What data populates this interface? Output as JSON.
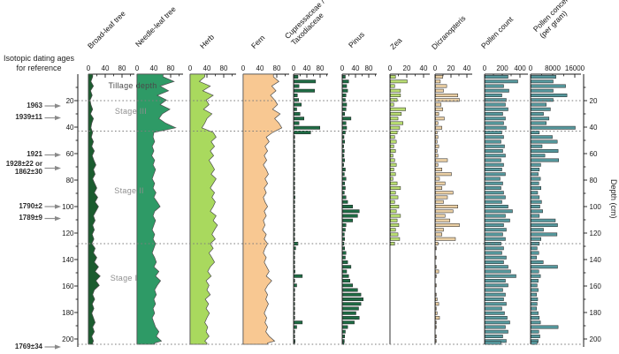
{
  "left_panel": {
    "title_line1": "Isotopic dating ages",
    "title_line2": "for reference",
    "dating_labels": [
      {
        "lines": [
          "1963"
        ],
        "depth": 24
      },
      {
        "lines": [
          "1939±11"
        ],
        "depth": 33
      },
      {
        "lines": [
          "1921"
        ],
        "depth": 61
      },
      {
        "lines": [
          "1928±22 or",
          "1862±30"
        ],
        "depth": 71
      },
      {
        "lines": [
          "1790±2"
        ],
        "depth": 100
      },
      {
        "lines": [
          "1789±9"
        ],
        "depth": 109
      },
      {
        "lines": [
          "1769±34"
        ],
        "depth": 206
      }
    ]
  },
  "stages": [
    {
      "label": "Tillage depth",
      "from_depth": 0,
      "to_depth": 20
    },
    {
      "label": "Stage III",
      "from_depth": 20,
      "to_depth": 43
    },
    {
      "label": "Stage II",
      "from_depth": 43,
      "to_depth": 128
    },
    {
      "label": "Stage I",
      "from_depth": 128,
      "to_depth": 204
    }
  ],
  "depth_axis": {
    "label": "Depth (cm)",
    "ticks": [
      20,
      40,
      60,
      80,
      100,
      120,
      140,
      160,
      180,
      200
    ],
    "top_depth": 0,
    "bottom_depth": 204
  },
  "chart_data": {
    "type": "area",
    "note": "stratigraphic pollen diagram; percent abundance vs depth",
    "boundaries_depth": [
      20,
      43,
      128,
      204
    ],
    "depths": [
      2,
      5.5,
      9,
      12.5,
      16,
      19.5,
      23,
      26.5,
      30,
      33.5,
      37,
      40.5,
      44,
      47.5,
      51,
      54.5,
      58,
      61.5,
      65,
      68.5,
      72,
      75.5,
      79,
      82.5,
      86,
      89.5,
      93,
      96.5,
      100,
      103.5,
      107,
      110.5,
      114,
      117.5,
      121,
      124.5,
      128,
      131.5,
      135,
      138.5,
      142,
      145.5,
      149,
      152.5,
      156,
      159.5,
      163,
      166.5,
      170,
      173.5,
      177,
      180.5,
      184,
      187.5,
      191,
      194.5,
      198,
      201.5,
      203
    ],
    "columns": [
      {
        "title": "Broad-leaf tree",
        "style": "area",
        "color": "#1b5c2f",
        "ticks": [
          0,
          40,
          80
        ],
        "values": [
          10,
          6,
          12,
          5,
          9,
          4,
          6,
          10,
          5,
          12,
          8,
          6,
          10,
          7,
          12,
          8,
          14,
          9,
          13,
          18,
          12,
          16,
          10,
          15,
          20,
          14,
          22,
          16,
          24,
          18,
          12,
          16,
          10,
          14,
          9,
          13,
          8,
          16,
          12,
          20,
          14,
          24,
          16,
          28,
          18,
          26,
          14,
          10,
          15,
          9,
          13,
          8,
          12,
          16,
          10,
          14,
          8,
          12,
          10
        ]
      },
      {
        "title": "Needle-leaf tree",
        "style": "area",
        "color": "#2e9a66",
        "ticks": [
          0,
          40,
          80
        ],
        "values": [
          62,
          88,
          55,
          75,
          48,
          70,
          55,
          78,
          60,
          52,
          68,
          92,
          40,
          38,
          42,
          36,
          40,
          35,
          42,
          38,
          44,
          40,
          36,
          42,
          38,
          45,
          40,
          48,
          55,
          42,
          38,
          44,
          40,
          36,
          42,
          38,
          44,
          40,
          36,
          42,
          46,
          40,
          52,
          44,
          56,
          48,
          42,
          46,
          40,
          44,
          38,
          42,
          36,
          40,
          44,
          52,
          46,
          58,
          42
        ]
      },
      {
        "title": "Herb",
        "style": "area",
        "color": "#a9d95e",
        "ticks": [
          0,
          40,
          80
        ],
        "values": [
          35,
          22,
          48,
          30,
          55,
          38,
          45,
          32,
          52,
          40,
          35,
          28,
          55,
          62,
          50,
          58,
          48,
          56,
          45,
          52,
          58,
          50,
          62,
          55,
          48,
          58,
          52,
          60,
          55,
          48,
          62,
          55,
          65,
          58,
          52,
          60,
          48,
          55,
          45,
          52,
          58,
          48,
          42,
          50,
          38,
          45,
          40,
          48,
          36,
          44,
          38,
          46,
          40,
          35,
          42,
          38,
          45,
          35,
          40
        ]
      },
      {
        "title": "Fern",
        "style": "area",
        "color": "#f8c892",
        "ticks": [
          0,
          40,
          80
        ],
        "values": [
          72,
          85,
          68,
          78,
          65,
          75,
          82,
          70,
          88,
          75,
          85,
          92,
          70,
          55,
          62,
          52,
          58,
          50,
          56,
          48,
          55,
          60,
          52,
          58,
          50,
          55,
          48,
          52,
          58,
          50,
          55,
          48,
          52,
          46,
          55,
          50,
          58,
          52,
          48,
          55,
          50,
          56,
          62,
          55,
          68,
          58,
          52,
          58,
          54,
          60,
          55,
          50,
          56,
          52,
          58,
          54,
          62,
          75,
          58
        ]
      },
      {
        "title": "Cupressaceae /",
        "subtitle": "Taxodiaceae",
        "style": "bar",
        "color": "#1e6b44",
        "ticks": [
          0,
          40,
          80
        ],
        "values": [
          12,
          65,
          15,
          62,
          10,
          14,
          22,
          8,
          18,
          30,
          15,
          78,
          50,
          2,
          2,
          1,
          2,
          1,
          2,
          1,
          2,
          1,
          2,
          1,
          2,
          1,
          3,
          1,
          2,
          1,
          2,
          1,
          2,
          1,
          2,
          1,
          12,
          5,
          2,
          1,
          2,
          1,
          3,
          25,
          2,
          8,
          2,
          1,
          2,
          1,
          1,
          1,
          2,
          25,
          8,
          1,
          2,
          3,
          1
        ]
      },
      {
        "title": "Pinus",
        "style": "bar",
        "color": "#1e6b44",
        "ticks": [
          0,
          40,
          80
        ],
        "values": [
          8,
          18,
          12,
          15,
          10,
          8,
          12,
          10,
          6,
          25,
          10,
          12,
          8,
          4,
          6,
          3,
          5,
          4,
          6,
          3,
          8,
          5,
          10,
          6,
          8,
          5,
          10,
          15,
          30,
          50,
          45,
          30,
          10,
          8,
          5,
          6,
          4,
          6,
          10,
          8,
          15,
          25,
          12,
          18,
          22,
          30,
          45,
          55,
          62,
          55,
          48,
          40,
          50,
          35,
          15,
          8,
          6,
          5,
          4
        ]
      },
      {
        "title": "Zea",
        "style": "bar",
        "color": "#b9dd72",
        "ticks": [
          0,
          20,
          40
        ],
        "values": [
          6,
          20,
          5,
          12,
          12,
          8,
          4,
          18,
          13,
          9,
          15,
          11,
          8,
          5,
          7,
          4,
          6,
          3,
          5,
          7,
          4,
          6,
          3,
          8,
          12,
          6,
          9,
          5,
          10,
          7,
          12,
          8,
          10,
          6,
          9,
          11,
          5,
          0,
          0,
          0,
          0,
          0,
          0,
          0,
          0,
          0,
          0,
          0,
          0,
          0,
          0,
          0,
          0,
          0,
          0,
          0,
          0,
          0,
          0
        ]
      },
      {
        "title": "Dicranopteris",
        "style": "bar",
        "color": "#eacfa4",
        "ticks": [
          0,
          20,
          40
        ],
        "values": [
          9,
          6,
          14,
          10,
          28,
          30,
          7,
          9,
          4,
          11,
          3,
          8,
          2,
          3,
          2,
          4,
          2,
          3,
          15,
          3,
          8,
          20,
          5,
          12,
          8,
          22,
          15,
          10,
          28,
          22,
          12,
          18,
          30,
          10,
          8,
          25,
          3,
          1,
          0,
          1,
          0,
          1,
          4,
          1,
          0,
          1,
          0,
          1,
          2,
          4,
          1,
          2,
          5,
          1,
          1,
          0,
          1,
          1,
          0
        ]
      },
      {
        "title": "Pollen count",
        "style": "bar",
        "color": "#56989d",
        "ticks": [
          0,
          200,
          400
        ],
        "values": [
          260,
          370,
          210,
          270,
          190,
          240,
          230,
          260,
          200,
          230,
          210,
          240,
          190,
          210,
          180,
          220,
          200,
          230,
          180,
          210,
          190,
          230,
          170,
          200,
          180,
          210,
          230,
          190,
          260,
          310,
          230,
          280,
          210,
          240,
          200,
          230,
          180,
          210,
          190,
          240,
          210,
          260,
          290,
          350,
          230,
          260,
          200,
          230,
          210,
          240,
          190,
          220,
          250,
          280,
          230,
          260,
          200,
          240,
          180
        ]
      },
      {
        "title": "Pollen concentration",
        "subtitle": "(per gram)",
        "style": "bar",
        "color": "#56989d",
        "ticks": [
          0,
          8000,
          16000
        ],
        "values": [
          9000,
          8000,
          12500,
          8000,
          13000,
          8000,
          5500,
          7000,
          4500,
          6500,
          5500,
          16000,
          3000,
          7700,
          9500,
          4000,
          9800,
          5000,
          10000,
          3500,
          3000,
          2600,
          3400,
          2800,
          3600,
          2400,
          3000,
          3800,
          3200,
          4200,
          3000,
          8800,
          9600,
          4500,
          9400,
          3600,
          3000,
          2200,
          2800,
          2000,
          4400,
          9600,
          2800,
          3400,
          2600,
          2200,
          2600,
          2000,
          2400,
          2200,
          2000,
          2600,
          3000,
          3400,
          9800,
          2800,
          3200,
          2600,
          2200
        ]
      }
    ]
  }
}
